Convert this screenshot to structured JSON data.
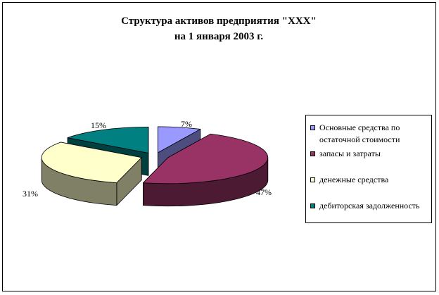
{
  "chart_data": {
    "type": "pie",
    "title": [
      "Структура активов предприятия \"XXX\"",
      "на 1 января 2003 г."
    ],
    "categories": [
      "Основные средства по остаточной стоимости",
      "запасы и затраты",
      "денежные средства",
      "дебиторская задолженность"
    ],
    "values": [
      7,
      47,
      31,
      15
    ],
    "labels": [
      "7%",
      "47%",
      "31%",
      "15%"
    ],
    "colors": [
      "#9999ff",
      "#993366",
      "#ffffcc",
      "#008080"
    ],
    "side_colors": [
      "#4d4d80",
      "#4d1a33",
      "#808066",
      "#004040"
    ],
    "legend": "right",
    "exploded": true
  }
}
